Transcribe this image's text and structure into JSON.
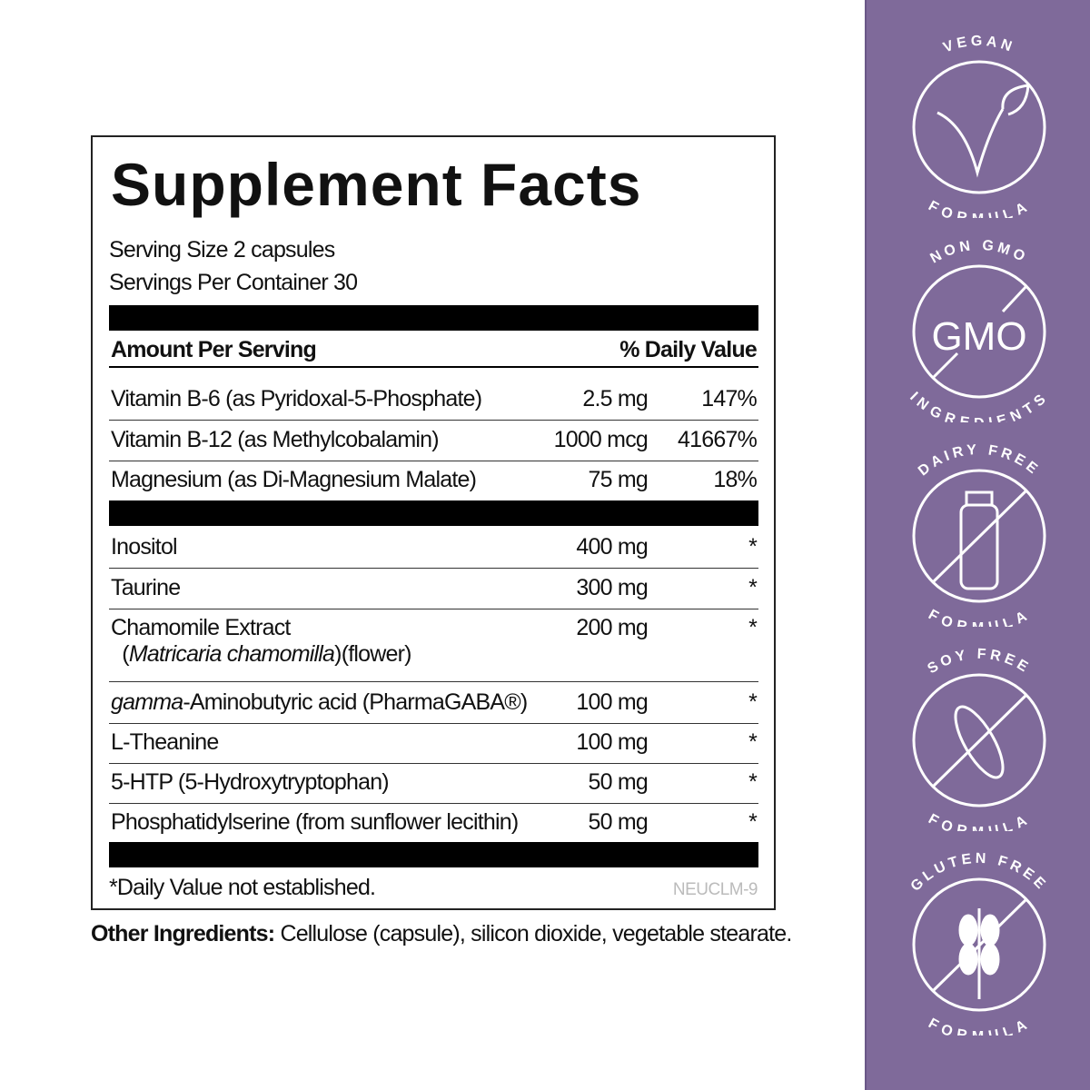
{
  "panel": {
    "title": "Supplement Facts",
    "serving_size": "Serving Size 2 capsules",
    "servings_per_container": "Servings Per Container 30",
    "header": {
      "amount": "Amount Per Serving",
      "dv": "% Daily Value"
    },
    "rows": [
      {
        "name": "Vitamin B-6 (as Pyridoxal-5-Phosphate)",
        "amount": "2.5 mg",
        "dv": "147%"
      },
      {
        "name": "Vitamin B-12 (as Methylcobalamin)",
        "amount": "1000 mcg",
        "dv": "41667%"
      },
      {
        "name": "Magnesium (as Di-Magnesium Malate)",
        "amount": "75 mg",
        "dv": "18%"
      },
      {
        "name": "Inositol",
        "amount": "400 mg",
        "dv": "*"
      },
      {
        "name": "Taurine",
        "amount": "300 mg",
        "dv": "*"
      },
      {
        "name": "Chamomile Extract",
        "name_italic": "Matricaria chamomilla",
        "name_suffix": "(flower)",
        "amount": "200 mg",
        "dv": "*"
      },
      {
        "name_italic": "gamma",
        "name": "-Aminobutyric acid (PharmaGABA®)",
        "amount": "100 mg",
        "dv": "*"
      },
      {
        "name": "L-Theanine",
        "amount": "100 mg",
        "dv": "*"
      },
      {
        "name": "5-HTP (5-Hydroxytryptophan)",
        "amount": "50 mg",
        "dv": "*"
      },
      {
        "name": "Phosphatidylserine (from sunflower lecithin)",
        "amount": "50 mg",
        "dv": "*"
      }
    ],
    "footnote": "*Daily Value not established.",
    "code": "NEUCLM-9"
  },
  "other_ingredients": {
    "label": "Other Ingredients:",
    "text": " Cellulose (capsule), silicon dioxide, vegetable stearate."
  },
  "sidebar": {
    "color": "#7f6a9a",
    "badges": [
      {
        "top": "VEGAN",
        "bottom": "FORMULA",
        "icon": "vegan-leaf-icon"
      },
      {
        "top": "NON GMO",
        "bottom": "INGREDIENTS",
        "icon": "no-gmo-icon",
        "center": "GMO"
      },
      {
        "top": "DAIRY FREE",
        "bottom": "FORMULA",
        "icon": "no-dairy-bottle-icon"
      },
      {
        "top": "SOY FREE",
        "bottom": "FORMULA",
        "icon": "no-soy-icon"
      },
      {
        "top": "GLUTEN FREE",
        "bottom": "FORMULA",
        "icon": "no-gluten-wheat-icon"
      }
    ]
  }
}
